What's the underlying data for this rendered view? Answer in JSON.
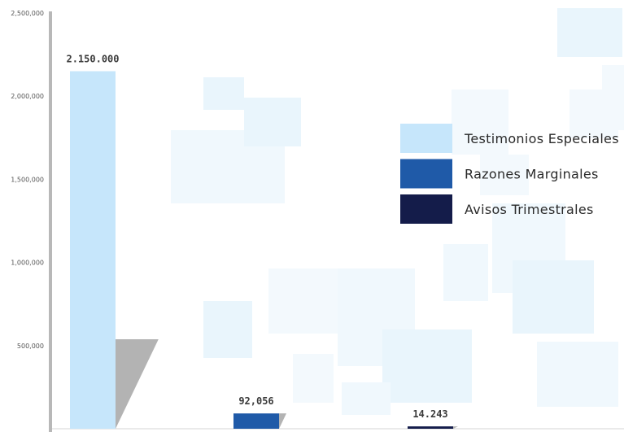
{
  "chart_data": {
    "type": "bar",
    "categories": [
      "Testimonios Especiales",
      "Razones Marginales",
      "Avisos Trimestrales"
    ],
    "values": [
      2150000,
      92056,
      14243
    ],
    "value_labels": [
      "2.150.000",
      "92,056",
      "14.243"
    ],
    "colors": [
      "#c6e6fb",
      "#1f5aa8",
      "#141c4a"
    ],
    "shadow_color": "#b3b3b3",
    "axis_color": "#b8b8b8",
    "ylim": [
      0,
      2500000
    ],
    "yticks": [
      {
        "value": 500000,
        "label": "500,000"
      },
      {
        "value": 1000000,
        "label": "1,000,000"
      },
      {
        "value": 1500000,
        "label": "1,500,000"
      },
      {
        "value": 2000000,
        "label": "2,000,000"
      },
      {
        "value": 2500000,
        "label": "2,500,000"
      }
    ],
    "legend": {
      "position": "right",
      "items": [
        {
          "label": "Testimonios Especiales",
          "color": "#c6e6fb"
        },
        {
          "label": "Razones Marginales",
          "color": "#1f5aa8"
        },
        {
          "label": "Avisos Trimestrales",
          "color": "#141c4a"
        }
      ]
    },
    "grid": false,
    "title": "",
    "xlabel": "",
    "ylabel": ""
  }
}
